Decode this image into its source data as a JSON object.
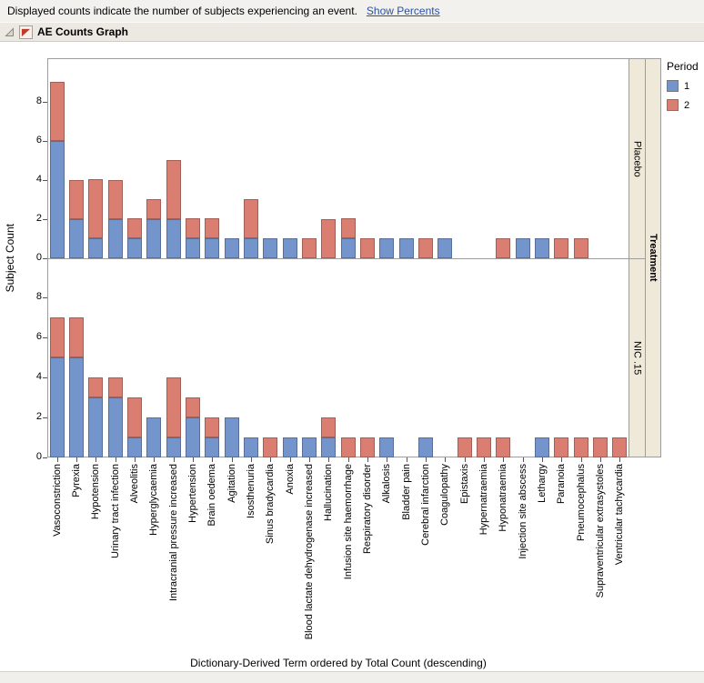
{
  "window": {
    "message": "Displayed counts indicate the number of subjects experiencing an event.",
    "show_percents_link": "Show Percents",
    "outline_title": "AE Counts Graph"
  },
  "chart_data": {
    "type": "bar",
    "stacked": true,
    "orientation": "vertical",
    "title": "AE Counts Graph",
    "xlabel": "Dictionary-Derived Term ordered by Total Count (descending)",
    "ylabel": "Subject Count",
    "facet_column_label": "Treatment",
    "grid": false,
    "yticks": [
      0,
      2,
      4,
      6,
      8
    ],
    "legend": {
      "title": "Period",
      "position": "right",
      "entries": [
        {
          "label": "1",
          "color": "#7495CB"
        },
        {
          "label": "2",
          "color": "#DA7E72"
        }
      ]
    },
    "categories": [
      "Vasoconstriction",
      "Pyrexia",
      "Hypotension",
      "Urinary tract infection",
      "Alveolitis",
      "Hyperglycaemia",
      "Intracranial pressure increased",
      "Hypertension",
      "Brain oedema",
      "Agitation",
      "Isosthenuria",
      "Sinus bradycardia",
      "Anoxia",
      "Blood lactate dehydrogenase increased",
      "Hallucination",
      "Infusion site haemorrhage",
      "Respiratory disorder",
      "Alkalosis",
      "Bladder pain",
      "Cerebral infarction",
      "Coagulopathy",
      "Epistaxis",
      "Hypernatraemia",
      "Hyponatraemia",
      "Injection site abscess",
      "Lethargy",
      "Paranoia",
      "Pneumocephalus",
      "Supraventricular extrasystoles",
      "Ventricular tachycardia"
    ],
    "panels": [
      {
        "label": "Placebo",
        "ylim": [
          0,
          10.2
        ],
        "series": [
          {
            "name": "1",
            "values": [
              6,
              2,
              1,
              2,
              1,
              2,
              2,
              1,
              1,
              1,
              1,
              1,
              1,
              0,
              0,
              1,
              0,
              1,
              1,
              0,
              1,
              0,
              0,
              0,
              1,
              1,
              0,
              0,
              0,
              0
            ]
          },
          {
            "name": "2",
            "values": [
              3,
              2,
              3,
              2,
              1,
              1,
              3,
              1,
              1,
              0,
              2,
              0,
              0,
              1,
              2,
              1,
              1,
              0,
              0,
              1,
              0,
              0,
              0,
              1,
              0,
              0,
              1,
              1,
              0,
              0
            ]
          }
        ]
      },
      {
        "label": "NIC .15",
        "ylim": [
          0,
          10
        ],
        "series": [
          {
            "name": "1",
            "values": [
              5,
              5,
              3,
              3,
              1,
              2,
              1,
              2,
              1,
              2,
              1,
              0,
              1,
              1,
              1,
              0,
              0,
              1,
              0,
              1,
              0,
              0,
              0,
              0,
              0,
              1,
              0,
              0,
              0,
              0
            ]
          },
          {
            "name": "2",
            "values": [
              2,
              2,
              1,
              1,
              2,
              0,
              3,
              1,
              1,
              0,
              0,
              1,
              0,
              0,
              1,
              1,
              1,
              0,
              0,
              0,
              0,
              1,
              1,
              1,
              0,
              0,
              1,
              1,
              1,
              1
            ]
          }
        ]
      }
    ]
  }
}
